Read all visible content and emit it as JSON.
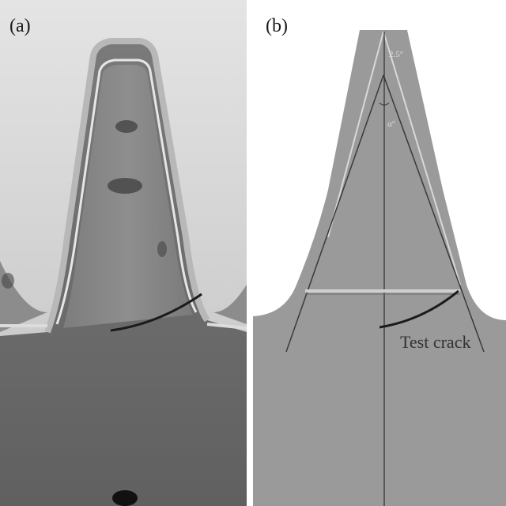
{
  "panel_a": {
    "label": "(a)"
  },
  "panel_b": {
    "label": "(b)",
    "angle_top": "2.5°",
    "angle_mid": "α°",
    "crack_label": "Test crack"
  },
  "colors": {
    "gear_gray": "#9a9a9a",
    "photo_bg": "#d0d0d0",
    "crack": "#1b1b1b",
    "guide_light": "#d8d8d8"
  }
}
